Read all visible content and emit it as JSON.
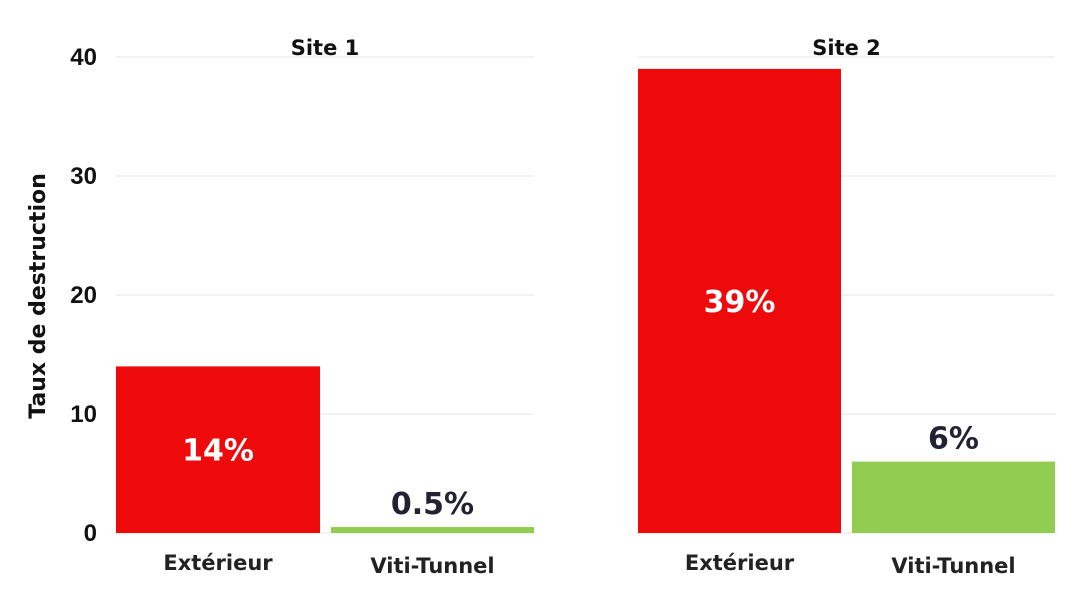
{
  "chart_data": {
    "type": "bar",
    "ylabel": "Taux de destruction",
    "ylim": [
      0,
      40
    ],
    "yticks": [
      "0",
      "10",
      "20",
      "30",
      "40"
    ],
    "grid": true,
    "panels": [
      {
        "name": "Site 1",
        "categories": [
          "Extérieur",
          "Viti-Tunnel"
        ],
        "values": [
          14,
          0.5
        ],
        "labels": [
          "14%",
          "0.5%"
        ]
      },
      {
        "name": "Site 2",
        "categories": [
          "Extérieur",
          "Viti-Tunnel"
        ],
        "values": [
          39,
          6
        ],
        "labels": [
          "39%",
          "6%"
        ]
      }
    ],
    "colors": [
      "#ee0a0a",
      "#92cc50"
    ]
  }
}
